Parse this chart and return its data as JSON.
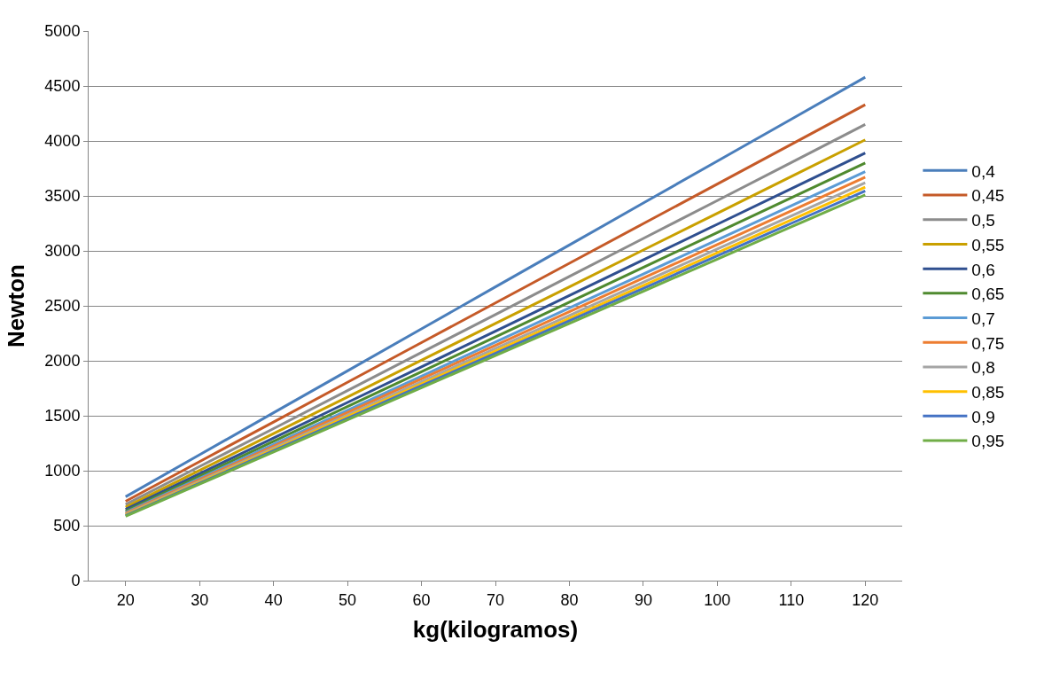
{
  "chart_data": {
    "type": "line",
    "xlabel": "kg(kilogramos)",
    "ylabel": "Newton",
    "categories": [
      "20",
      "30",
      "40",
      "50",
      "60",
      "70",
      "80",
      "90",
      "100",
      "110",
      "120"
    ],
    "series": [
      {
        "name": "0,4",
        "color": "#4a7ebb",
        "values": [
          763,
          1145,
          1527,
          1908,
          2290,
          2672,
          3053,
          3435,
          3817,
          4198,
          4580
        ]
      },
      {
        "name": "0,45",
        "color": "#c55a28",
        "values": [
          722,
          1083,
          1443,
          1804,
          2165,
          2526,
          2887,
          3248,
          3608,
          3969,
          4330
        ]
      },
      {
        "name": "0,5",
        "color": "#8c8c8c",
        "values": [
          692,
          1038,
          1383,
          1729,
          2075,
          2421,
          2767,
          3113,
          3458,
          3804,
          4150
        ]
      },
      {
        "name": "0,55",
        "color": "#c9a000",
        "values": [
          668,
          1003,
          1337,
          1671,
          2005,
          2339,
          2673,
          3008,
          3342,
          3676,
          4010
        ]
      },
      {
        "name": "0,6",
        "color": "#2f4f8f",
        "values": [
          648,
          973,
          1297,
          1621,
          1945,
          2269,
          2593,
          2918,
          3242,
          3566,
          3890
        ]
      },
      {
        "name": "0,65",
        "color": "#4f8a2f",
        "values": [
          633,
          950,
          1267,
          1583,
          1900,
          2217,
          2533,
          2850,
          3167,
          3483,
          3800
        ]
      },
      {
        "name": "0,7",
        "color": "#5b9bd5",
        "values": [
          620,
          930,
          1240,
          1550,
          1860,
          2170,
          2480,
          2790,
          3100,
          3410,
          3720
        ]
      },
      {
        "name": "0,75",
        "color": "#ed7d31",
        "values": [
          612,
          918,
          1223,
          1529,
          1835,
          2141,
          2447,
          2753,
          3058,
          3364,
          3670
        ]
      },
      {
        "name": "0,8",
        "color": "#a5a5a5",
        "values": [
          603,
          905,
          1207,
          1508,
          1810,
          2112,
          2413,
          2715,
          3017,
          3318,
          3620
        ]
      },
      {
        "name": "0,85",
        "color": "#ffc000",
        "values": [
          597,
          895,
          1193,
          1492,
          1790,
          2088,
          2387,
          2685,
          2983,
          3282,
          3580
        ]
      },
      {
        "name": "0,9",
        "color": "#4472c4",
        "values": [
          591,
          886,
          1182,
          1477,
          1773,
          2068,
          2363,
          2659,
          2954,
          3250,
          3545
        ]
      },
      {
        "name": "0,95",
        "color": "#70ad47",
        "values": [
          585,
          878,
          1170,
          1463,
          1755,
          2048,
          2340,
          2633,
          2925,
          3218,
          3510
        ]
      }
    ],
    "ylim": [
      0,
      5000
    ],
    "yticks": [
      0,
      500,
      1000,
      1500,
      2000,
      2500,
      3000,
      3500,
      4000,
      4500,
      5000
    ],
    "grid": "y",
    "legend": "right",
    "marker": "none",
    "line_style": "solid"
  }
}
